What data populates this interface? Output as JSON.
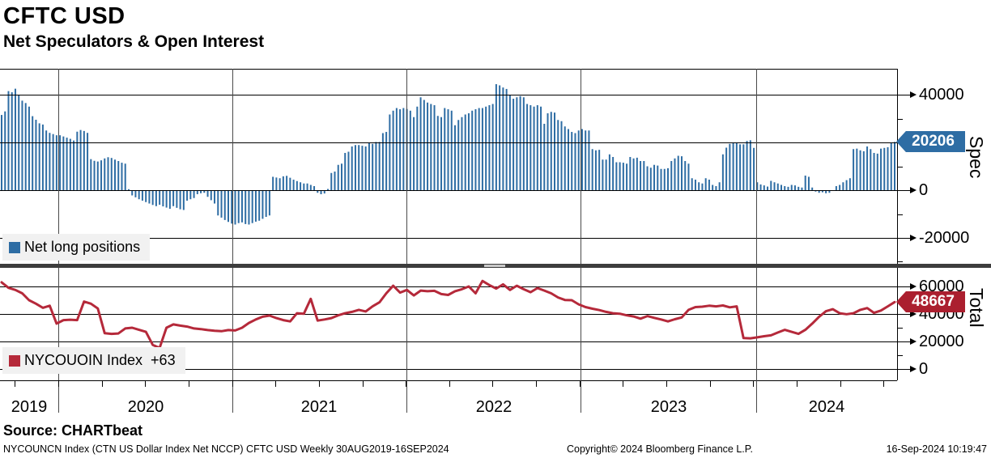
{
  "header": {
    "title": "CFTC USD",
    "subtitle": "Net Speculators & Open Interest"
  },
  "source_label": "Source: CHARTbeat",
  "footer": {
    "left": "NYCOUNCN Index (CTN US Dollar Index Net NCCP) CFTC USD  Weekly 30AUG2019-16SEP2024",
    "copyright": "Copyright© 2024 Bloomberg Finance L.P.",
    "timestamp": "16-Sep-2024 10:19:47"
  },
  "colors": {
    "bar": "#2e6da4",
    "line": "#b5293a",
    "spec_tag_bg": "#2e6da4",
    "total_tag_bg": "#ab1f2f",
    "separator": "#3d3d3d",
    "legend_bg": "#f1f1f1"
  },
  "x_axis": {
    "years": [
      "2019",
      "2020",
      "2021",
      "2022",
      "2023",
      "2024"
    ]
  },
  "spec_panel": {
    "axis_title": "Spec",
    "tag_value": "20206",
    "ticks": [
      "40000",
      "20000",
      "0",
      "-20000"
    ],
    "legend_label": "Net long positions"
  },
  "total_panel": {
    "axis_title": "Total",
    "tag_value": "48667",
    "ticks": [
      "60000",
      "40000",
      "20000",
      "0"
    ],
    "legend_label": "NYCOUOIN Index  +63"
  },
  "chart_data": [
    {
      "type": "bar",
      "title": "Net long positions (Spec)",
      "freq": "weekly",
      "period": "30AUG2019-16SEP2024",
      "ylabel": "Spec",
      "ylim": [
        -30000,
        50000
      ],
      "yticks": [
        40000,
        20000,
        0,
        -20000
      ],
      "last_value": 20206,
      "values": [
        31500,
        33000,
        41500,
        41000,
        42500,
        40000,
        37500,
        36500,
        35000,
        31000,
        29500,
        28000,
        27500,
        25000,
        24000,
        23500,
        23000,
        23000,
        22500,
        22000,
        21500,
        20800,
        24500,
        25200,
        24800,
        24000,
        13000,
        12300,
        12000,
        12500,
        13300,
        13800,
        13500,
        12800,
        12200,
        11500,
        11100,
        400,
        -2200,
        -3000,
        -3800,
        -4400,
        -5000,
        -5600,
        -6200,
        -6700,
        -6100,
        -6800,
        -7300,
        -7800,
        -6700,
        -7400,
        -8000,
        -8300,
        -4400,
        -3800,
        -3300,
        -1700,
        -1300,
        -1100,
        -2800,
        -4200,
        -5600,
        -10600,
        -11500,
        -12500,
        -13300,
        -14000,
        -14400,
        -13800,
        -13500,
        -14200,
        -14400,
        -13800,
        -13200,
        -12800,
        -12000,
        -11200,
        -10600,
        5600,
        5300,
        5000,
        5800,
        6000,
        5200,
        4400,
        3800,
        3300,
        2800,
        2800,
        2200,
        1700,
        -1100,
        -1700,
        -1400,
        500,
        7200,
        7800,
        10600,
        11100,
        15600,
        16100,
        18300,
        18900,
        18900,
        18600,
        18300,
        20000,
        19400,
        20200,
        20200,
        23900,
        24400,
        31700,
        33300,
        34400,
        33900,
        34400,
        34000,
        33300,
        30600,
        35000,
        38900,
        37800,
        36700,
        36100,
        35600,
        31100,
        30600,
        34400,
        33900,
        33300,
        27200,
        29400,
        30600,
        31700,
        32200,
        33300,
        33900,
        34400,
        34400,
        35000,
        35600,
        36100,
        44400,
        43900,
        43000,
        42400,
        40000,
        38300,
        38900,
        39400,
        38900,
        36100,
        35600,
        35000,
        35600,
        35000,
        27800,
        32200,
        32800,
        32500,
        29400,
        28900,
        26700,
        25600,
        24400,
        23900,
        25000,
        25600,
        25000,
        25000,
        17200,
        16700,
        16900,
        12800,
        12800,
        15000,
        13900,
        11700,
        11700,
        11500,
        11100,
        13900,
        13300,
        13600,
        12200,
        12200,
        10000,
        9400,
        10600,
        10300,
        8900,
        8900,
        9200,
        12200,
        13300,
        14400,
        14200,
        12200,
        11100,
        5000,
        4400,
        3300,
        2800,
        5000,
        4400,
        2200,
        1700,
        3300,
        15000,
        17800,
        19400,
        20000,
        19700,
        19200,
        19200,
        20600,
        20900,
        17700,
        3300,
        2400,
        2000,
        1500,
        3900,
        3300,
        2800,
        2200,
        1700,
        1400,
        2200,
        2000,
        1400,
        1100,
        6100,
        5600,
        1100,
        -600,
        -1100,
        -900,
        -1300,
        -1100,
        -200,
        1700,
        2200,
        3300,
        4200,
        5000,
        17200,
        17400,
        16700,
        16300,
        18300,
        17200,
        15600,
        15300,
        17400,
        17700,
        18000,
        19800,
        20206
      ]
    },
    {
      "type": "line",
      "title": "NYCOUOIN Index (Open Interest, Total)",
      "change_label": "+63",
      "freq": "biweekly-sampled",
      "step_weeks": 2,
      "period": "30AUG2019-16SEP2024",
      "ylabel": "Total",
      "ylim": [
        0,
        70000
      ],
      "yticks": [
        60000,
        40000,
        20000,
        0
      ],
      "last_value": 48667,
      "values": [
        63000,
        59000,
        57500,
        55000,
        50000,
        47500,
        44500,
        46000,
        33000,
        35500,
        35800,
        35500,
        49000,
        47500,
        44000,
        26000,
        25500,
        25800,
        29500,
        30000,
        28500,
        27000,
        17500,
        15300,
        30000,
        32400,
        31500,
        30800,
        29500,
        29000,
        28300,
        27800,
        27500,
        28300,
        28000,
        30000,
        33500,
        36000,
        38000,
        38800,
        37000,
        35500,
        34600,
        40500,
        40200,
        51000,
        35200,
        36000,
        37000,
        39000,
        40500,
        41500,
        43000,
        41800,
        45500,
        48500,
        55000,
        60500,
        55500,
        57500,
        53500,
        57000,
        56500,
        56800,
        54500,
        53800,
        56500,
        58000,
        60000,
        55000,
        64000,
        61000,
        58500,
        61500,
        57500,
        60500,
        58000,
        55800,
        58800,
        57000,
        55000,
        52000,
        50200,
        50000,
        47000,
        45000,
        43800,
        42800,
        41500,
        40500,
        40200,
        39000,
        38200,
        36600,
        38500,
        37200,
        36000,
        34600,
        36200,
        37500,
        43000,
        45000,
        45300,
        46000,
        45500,
        46200,
        44800,
        45500,
        22500,
        22300,
        23000,
        23800,
        24500,
        26500,
        28500,
        27000,
        25500,
        28500,
        33000,
        38000,
        42000,
        43500,
        40500,
        39800,
        40500,
        43000,
        44300,
        40800,
        42500,
        45500,
        48667
      ]
    }
  ]
}
